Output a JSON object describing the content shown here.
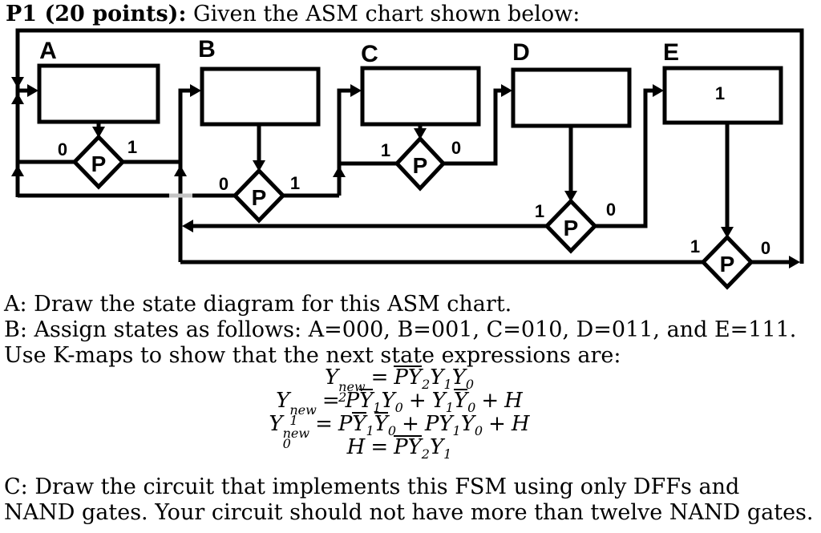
{
  "title": {
    "bold": "P1 (20 points):",
    "rest": " Given the ASM chart shown below:"
  },
  "asm_chart": {
    "states": [
      {
        "name": "A",
        "box_content": ""
      },
      {
        "name": "B",
        "box_content": ""
      },
      {
        "name": "C",
        "box_content": ""
      },
      {
        "name": "D",
        "box_content": ""
      },
      {
        "name": "E",
        "box_content": "1"
      }
    ],
    "decisions": [
      {
        "state": "A",
        "symbol": "P",
        "left_branch": "0",
        "right_branch": "1"
      },
      {
        "state": "B",
        "symbol": "P",
        "left_branch": "0",
        "right_branch": "1"
      },
      {
        "state": "C",
        "symbol": "P",
        "left_branch": "1",
        "right_branch": "0"
      },
      {
        "state": "D",
        "symbol": "P",
        "left_branch": "1",
        "right_branch": "0"
      },
      {
        "state": "E",
        "symbol": "P",
        "left_branch": "1",
        "right_branch": "0"
      }
    ],
    "transitions": [
      {
        "from": "A",
        "on": "0",
        "to": "A"
      },
      {
        "from": "A",
        "on": "1",
        "to": "B"
      },
      {
        "from": "B",
        "on": "0",
        "to": "A"
      },
      {
        "from": "B",
        "on": "1",
        "to": "C"
      },
      {
        "from": "C",
        "on": "1",
        "to": "C"
      },
      {
        "from": "C",
        "on": "0",
        "to": "D"
      },
      {
        "from": "D",
        "on": "1",
        "to": "B"
      },
      {
        "from": "D",
        "on": "0",
        "to": "E"
      },
      {
        "from": "E",
        "on": "1",
        "to": "B"
      },
      {
        "from": "E",
        "on": "0",
        "to": "A"
      }
    ]
  },
  "body": {
    "line_a": "A: Draw the state diagram for this ASM chart.",
    "line_b": "B: Assign states as follows: A=000, B=001, C=010, D=011, and E=111.",
    "line_kmap": "Use K-maps to show that the next state expressions are:",
    "line_c1": "C: Draw the circuit that implements this FSM using only DFFs and",
    "line_c2": "NAND gates.  Your circuit should not have more than twelve NAND gates."
  },
  "equations": [
    [
      {
        "v": "Y",
        "sub": "2",
        "sup": "new"
      },
      {
        "v": "=",
        "op": 1
      },
      {
        "v": "P",
        "bar": 1
      },
      {
        "v": "Y",
        "bar": 1,
        "sub": "2"
      },
      {
        "v": "Y",
        "sub": "1"
      },
      {
        "v": "Y",
        "sub": "0"
      }
    ],
    [
      {
        "v": "Y",
        "sub": "1",
        "sup": "new"
      },
      {
        "v": "=",
        "op": 1
      },
      {
        "v": "P"
      },
      {
        "v": "Y",
        "bar": 1,
        "sub": "1"
      },
      {
        "v": "Y",
        "sub": "0"
      },
      {
        "v": "+",
        "op": 1
      },
      {
        "v": "Y",
        "sub": "1"
      },
      {
        "v": "Y",
        "bar": 1,
        "sub": "0"
      },
      {
        "v": "+",
        "op": 1
      },
      {
        "v": "H"
      }
    ],
    [
      {
        "v": "Y",
        "sub": "0",
        "sup": "new"
      },
      {
        "v": "=",
        "op": 1
      },
      {
        "v": "P"
      },
      {
        "v": "Y",
        "bar": 1,
        "sub": "1"
      },
      {
        "v": "Y",
        "bar": 1,
        "sub": "0"
      },
      {
        "v": "+",
        "op": 1
      },
      {
        "v": "P"
      },
      {
        "v": "Y",
        "sub": "1"
      },
      {
        "v": "Y",
        "sub": "0"
      },
      {
        "v": "+",
        "op": 1
      },
      {
        "v": "H"
      }
    ],
    [
      {
        "v": "H"
      },
      {
        "v": "=",
        "op": 1
      },
      {
        "v": "P",
        "bar": 1
      },
      {
        "v": "Y",
        "bar": 1,
        "sub": "2"
      },
      {
        "v": "Y",
        "sub": "1"
      }
    ]
  ]
}
